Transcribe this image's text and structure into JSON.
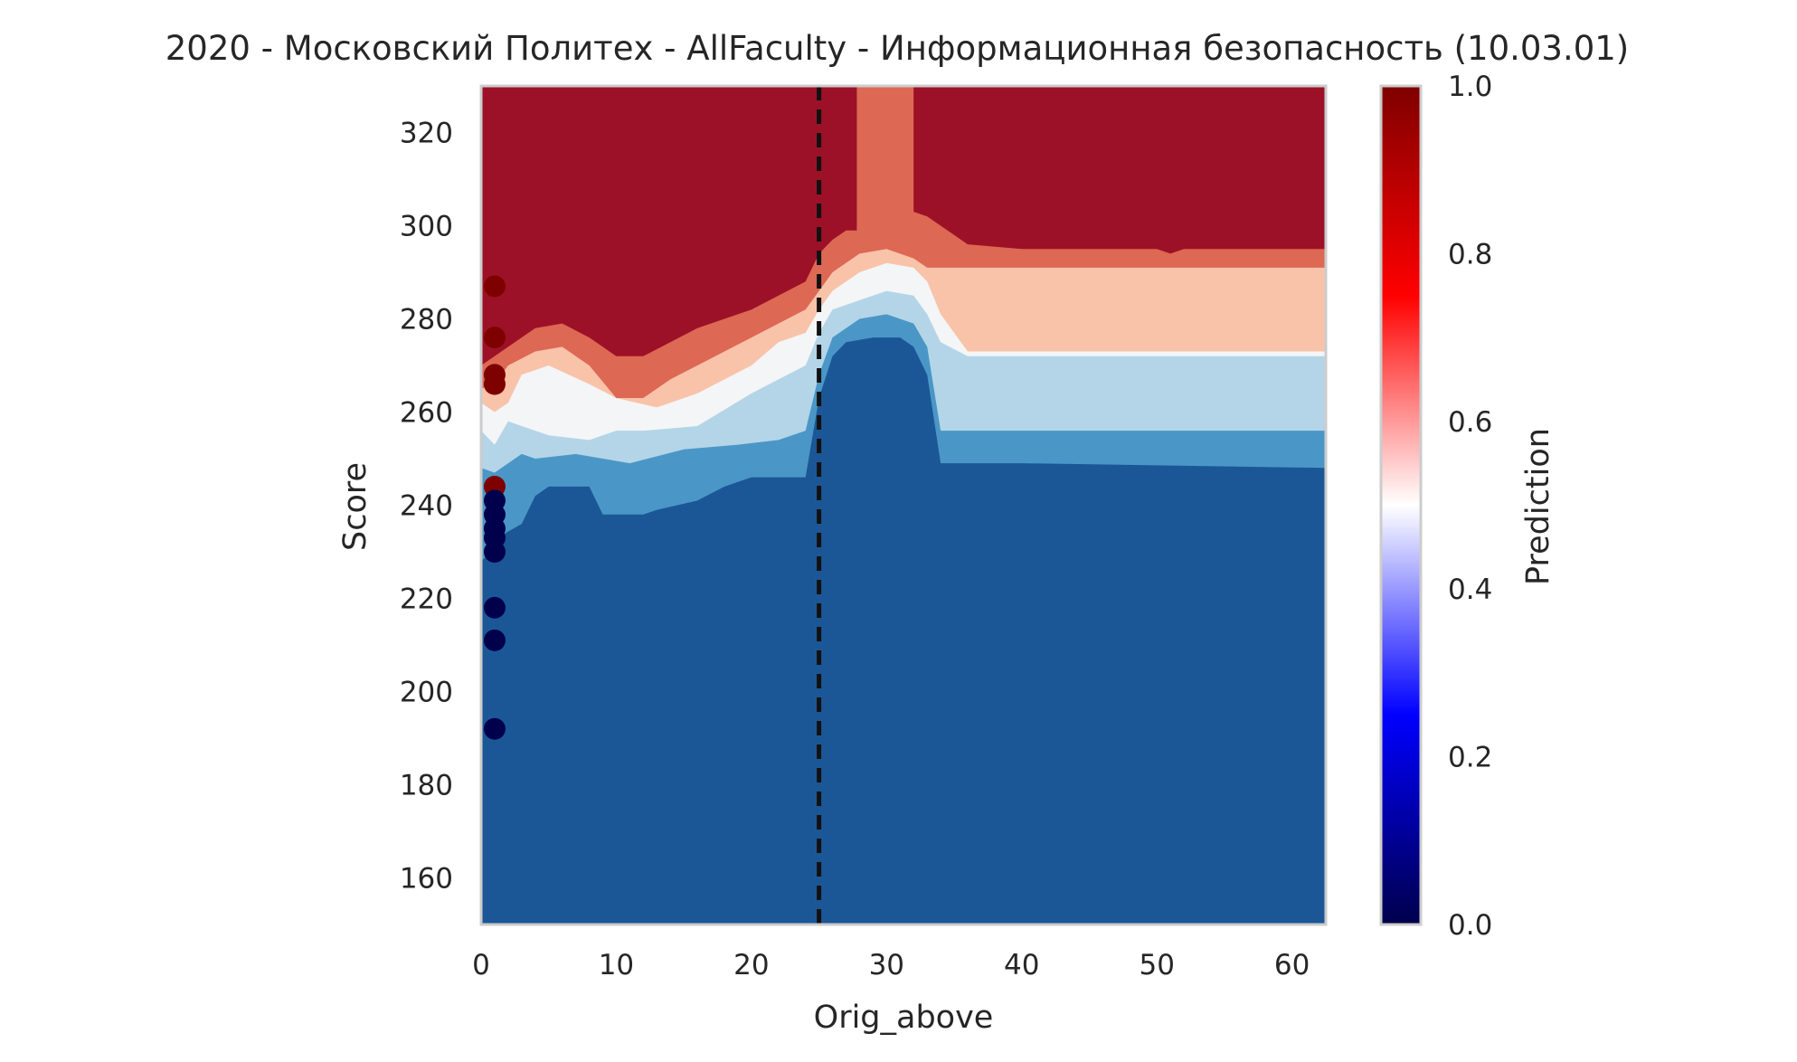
{
  "chart_data": {
    "type": "contour",
    "title": "2020 - Московский Политех - AllFaculty - Информационная безопасность (10.03.01)",
    "xlabel": "Orig_above",
    "ylabel": "Score",
    "xlim": [
      0,
      62.5
    ],
    "ylim": [
      150,
      330
    ],
    "xticks": [
      "0",
      "10",
      "20",
      "30",
      "40",
      "50",
      "60"
    ],
    "xtick_values": [
      0,
      10,
      20,
      30,
      40,
      50,
      60
    ],
    "yticks": [
      "160",
      "180",
      "200",
      "220",
      "240",
      "260",
      "280",
      "300",
      "320"
    ],
    "ytick_values": [
      160,
      180,
      200,
      220,
      240,
      260,
      280,
      300,
      320
    ],
    "grid": false,
    "colorbar": {
      "label": "Prediction",
      "colormap": "seismic",
      "range": [
        0,
        1
      ],
      "ticks": [
        "0.0",
        "0.2",
        "0.4",
        "0.6",
        "0.8",
        "1.0"
      ],
      "tick_values": [
        0,
        0.2,
        0.4,
        0.6,
        0.8,
        1.0
      ]
    },
    "contour_level_colors": [
      "#1b5796",
      "#4a97c7",
      "#b4d5e7",
      "#f4f5f6",
      "#f8c3a9",
      "#dd6854",
      "#9c1127"
    ],
    "contour_boundaries": [
      {
        "between": "0-1",
        "points": [
          [
            0,
            228
          ],
          [
            0.8,
            230
          ],
          [
            1.8,
            234
          ],
          [
            3,
            236
          ],
          [
            4,
            242
          ],
          [
            5,
            244
          ],
          [
            7,
            244
          ],
          [
            8,
            244
          ],
          [
            9,
            238
          ],
          [
            12,
            238
          ],
          [
            13,
            239
          ],
          [
            16,
            241
          ],
          [
            18,
            244
          ],
          [
            20,
            246
          ],
          [
            22,
            246
          ],
          [
            24,
            246
          ],
          [
            25,
            263
          ],
          [
            26,
            272
          ],
          [
            27,
            275
          ],
          [
            29,
            276
          ],
          [
            31,
            276
          ],
          [
            32,
            274
          ],
          [
            33,
            268
          ],
          [
            34,
            249
          ],
          [
            40,
            249
          ],
          [
            62.5,
            248
          ]
        ]
      },
      {
        "between": "1-2",
        "points": [
          [
            0,
            248
          ],
          [
            1,
            247
          ],
          [
            2,
            249
          ],
          [
            3,
            251
          ],
          [
            4,
            250
          ],
          [
            7,
            251
          ],
          [
            9,
            250
          ],
          [
            11,
            249
          ],
          [
            15,
            252
          ],
          [
            19,
            253
          ],
          [
            22,
            254
          ],
          [
            24,
            256
          ],
          [
            25,
            268
          ],
          [
            26,
            276
          ],
          [
            28,
            280
          ],
          [
            30,
            281
          ],
          [
            32,
            279
          ],
          [
            33,
            274
          ],
          [
            34,
            256
          ],
          [
            37,
            256
          ],
          [
            40,
            256
          ],
          [
            62.5,
            256
          ]
        ]
      },
      {
        "between": "2-3",
        "points": [
          [
            0,
            256
          ],
          [
            1,
            253
          ],
          [
            2,
            258
          ],
          [
            3,
            257
          ],
          [
            5,
            255
          ],
          [
            8,
            254
          ],
          [
            10,
            256
          ],
          [
            12,
            256
          ],
          [
            16,
            257
          ],
          [
            20,
            264
          ],
          [
            22,
            267
          ],
          [
            24,
            270
          ],
          [
            25,
            277
          ],
          [
            26,
            282
          ],
          [
            28,
            284
          ],
          [
            30,
            286
          ],
          [
            32,
            285
          ],
          [
            33,
            281
          ],
          [
            34,
            275
          ],
          [
            36,
            272
          ],
          [
            40,
            272
          ],
          [
            62.5,
            272
          ]
        ]
      },
      {
        "between": "3-4",
        "points": [
          [
            0,
            262
          ],
          [
            1,
            260
          ],
          [
            2,
            262
          ],
          [
            3,
            268
          ],
          [
            5,
            270
          ],
          [
            8,
            266
          ],
          [
            10,
            263
          ],
          [
            13,
            261
          ],
          [
            16,
            264
          ],
          [
            20,
            270
          ],
          [
            22,
            275
          ],
          [
            24,
            277
          ],
          [
            25,
            282
          ],
          [
            26,
            286
          ],
          [
            28,
            290
          ],
          [
            30,
            292
          ],
          [
            32,
            291
          ],
          [
            33,
            288
          ],
          [
            34,
            281
          ],
          [
            36,
            273
          ],
          [
            40,
            273
          ],
          [
            62.5,
            273
          ]
        ]
      },
      {
        "between": "4-5",
        "points": [
          [
            0,
            265
          ],
          [
            1,
            266
          ],
          [
            2,
            270
          ],
          [
            4,
            273
          ],
          [
            6,
            274
          ],
          [
            8,
            270
          ],
          [
            10,
            263
          ],
          [
            12,
            263
          ],
          [
            14,
            267
          ],
          [
            16,
            270
          ],
          [
            20,
            276
          ],
          [
            22,
            279
          ],
          [
            24,
            282
          ],
          [
            25,
            286
          ],
          [
            26,
            290
          ],
          [
            28,
            294
          ],
          [
            30,
            295
          ],
          [
            32,
            293
          ],
          [
            33,
            291
          ],
          [
            36,
            291
          ],
          [
            40,
            291
          ],
          [
            62.5,
            291
          ]
        ]
      },
      {
        "between": "5-6",
        "points": [
          [
            0,
            270
          ],
          [
            1,
            272
          ],
          [
            2,
            274
          ],
          [
            4,
            278
          ],
          [
            6,
            279
          ],
          [
            8,
            276
          ],
          [
            10,
            272
          ],
          [
            12,
            272
          ],
          [
            14,
            275
          ],
          [
            16,
            278
          ],
          [
            20,
            282
          ],
          [
            22,
            285
          ],
          [
            24,
            288
          ],
          [
            25,
            294
          ],
          [
            26,
            297
          ],
          [
            27,
            299
          ],
          [
            27.8,
            299
          ],
          [
            27.8,
            330
          ],
          [
            32,
            330
          ],
          [
            32,
            303
          ],
          [
            33,
            302
          ],
          [
            36,
            296
          ],
          [
            40,
            295
          ],
          [
            50,
            295
          ],
          [
            51,
            294
          ],
          [
            52,
            295
          ],
          [
            62.5,
            295
          ]
        ]
      }
    ],
    "points": [
      {
        "x": 1,
        "y": 287,
        "value": 1
      },
      {
        "x": 1,
        "y": 276,
        "value": 1
      },
      {
        "x": 1,
        "y": 268,
        "value": 1
      },
      {
        "x": 1,
        "y": 266,
        "value": 1
      },
      {
        "x": 1,
        "y": 244,
        "value": 1
      },
      {
        "x": 1,
        "y": 241,
        "value": 0
      },
      {
        "x": 1,
        "y": 238,
        "value": 0
      },
      {
        "x": 1,
        "y": 235,
        "value": 0
      },
      {
        "x": 1,
        "y": 233,
        "value": 0
      },
      {
        "x": 1,
        "y": 230,
        "value": 0
      },
      {
        "x": 1,
        "y": 218,
        "value": 0
      },
      {
        "x": 1,
        "y": 211,
        "value": 0
      },
      {
        "x": 1,
        "y": 192,
        "value": 0
      }
    ],
    "point_colors": {
      "0": "#00004c",
      "1": "#7f0000"
    },
    "vertical_line": {
      "x": 25,
      "style": "dashed",
      "color": "#111111"
    }
  }
}
